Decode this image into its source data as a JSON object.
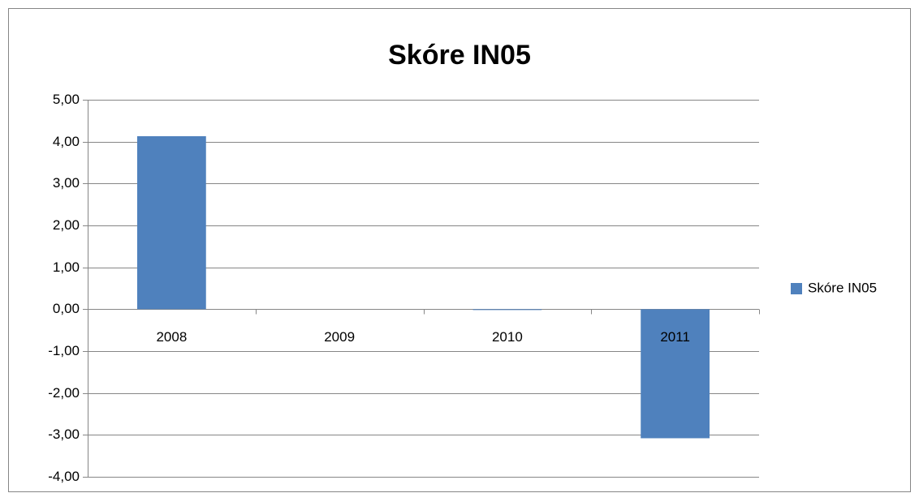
{
  "chart_data": {
    "type": "bar",
    "title": "Skóre IN05",
    "categories": [
      "2008",
      "2009",
      "2010",
      "2011"
    ],
    "series": [
      {
        "name": "Skóre IN05",
        "color": "#4f81bd",
        "values": [
          4.13,
          0,
          -0.02,
          -3.08
        ]
      }
    ],
    "ylim": [
      -4,
      5
    ],
    "yticks": [
      {
        "value": -4,
        "label": "-4,00"
      },
      {
        "value": -3,
        "label": "-3,00"
      },
      {
        "value": -2,
        "label": "-2,00"
      },
      {
        "value": -1,
        "label": "-1,00"
      },
      {
        "value": 0,
        "label": "0,00"
      },
      {
        "value": 1,
        "label": "1,00"
      },
      {
        "value": 2,
        "label": "2,00"
      },
      {
        "value": 3,
        "label": "3,00"
      },
      {
        "value": 4,
        "label": "4,00"
      },
      {
        "value": 5,
        "label": "5,00"
      }
    ],
    "grid": true,
    "legend": "right"
  }
}
